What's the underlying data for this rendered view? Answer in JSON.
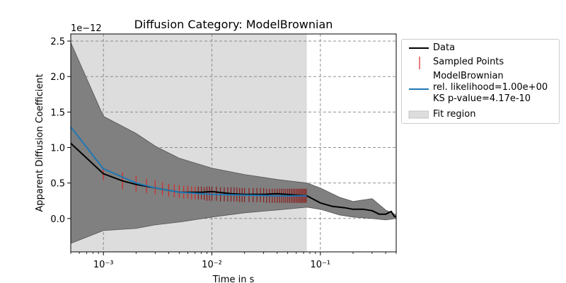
{
  "chart_data": {
    "type": "line",
    "title": "Diffusion Category: ModelBrownian",
    "xlabel": "Time in s",
    "ylabel": "Apparent Diffusion Coefficient",
    "y_offset_label": "1e−12",
    "x_scale": "log",
    "xlim": [
      0.0005,
      0.5
    ],
    "ylim": [
      -0.47,
      2.6
    ],
    "x_ticks": [
      0.001,
      0.01,
      0.1
    ],
    "x_tick_labels": [
      "10⁻³",
      "10⁻²",
      "10⁻¹"
    ],
    "y_ticks": [
      0.0,
      0.5,
      1.0,
      1.5,
      2.0,
      2.5
    ],
    "y_tick_labels": [
      "0.0",
      "0.5",
      "1.0",
      "1.5",
      "2.0",
      "2.5"
    ],
    "grid": true,
    "legend_position": "outside-right",
    "fit_region": [
      0.0005,
      0.075
    ],
    "series": [
      {
        "name": "Data",
        "color": "#000000",
        "x": [
          0.0005,
          0.001,
          0.0015,
          0.002,
          0.003,
          0.005,
          0.008,
          0.01,
          0.015,
          0.02,
          0.03,
          0.04,
          0.06,
          0.075,
          0.1,
          0.13,
          0.17,
          0.2,
          0.25,
          0.3,
          0.35,
          0.4,
          0.45,
          0.48,
          0.5
        ],
        "y": [
          1.06,
          0.63,
          0.53,
          0.48,
          0.43,
          0.37,
          0.37,
          0.38,
          0.35,
          0.34,
          0.34,
          0.35,
          0.33,
          0.32,
          0.22,
          0.17,
          0.15,
          0.13,
          0.13,
          0.11,
          0.06,
          0.06,
          0.1,
          0.03,
          0.02
        ]
      },
      {
        "name": "ModelBrownian\nrel. likelihood=1.00e+00\nKS p-value=4.17e-10",
        "color": "#1f77b4",
        "x": [
          0.0005,
          0.001,
          0.002,
          0.003,
          0.005,
          0.008,
          0.01,
          0.02,
          0.04,
          0.075
        ],
        "y": [
          1.29,
          0.7,
          0.5,
          0.43,
          0.37,
          0.35,
          0.34,
          0.33,
          0.32,
          0.32
        ]
      }
    ],
    "band": {
      "color": "#808080",
      "x": [
        0.0005,
        0.001,
        0.002,
        0.003,
        0.005,
        0.01,
        0.02,
        0.04,
        0.075,
        0.1,
        0.15,
        0.2,
        0.3,
        0.4,
        0.5
      ],
      "upper": [
        2.48,
        1.44,
        1.2,
        1.02,
        0.85,
        0.71,
        0.62,
        0.55,
        0.5,
        0.43,
        0.3,
        0.24,
        0.28,
        0.12,
        0.05
      ],
      "lower": [
        -0.35,
        -0.17,
        -0.14,
        -0.09,
        -0.05,
        0.02,
        0.08,
        0.12,
        0.16,
        0.13,
        0.05,
        0.02,
        0.0,
        -0.02,
        0.0
      ]
    },
    "sampled_points": {
      "name": "Sampled Points",
      "color": "#d62728",
      "x": [
        0.001,
        0.0015,
        0.002,
        0.0025,
        0.003,
        0.0035,
        0.004,
        0.0045,
        0.005,
        0.0055,
        0.006,
        0.0065,
        0.007,
        0.0075,
        0.008,
        0.0085,
        0.009,
        0.0095,
        0.01,
        0.011,
        0.012,
        0.013,
        0.014,
        0.015,
        0.016,
        0.017,
        0.018,
        0.019,
        0.02,
        0.022,
        0.024,
        0.026,
        0.028,
        0.03,
        0.032,
        0.034,
        0.036,
        0.038,
        0.04,
        0.042,
        0.044,
        0.046,
        0.048,
        0.05,
        0.052,
        0.054,
        0.056,
        0.058,
        0.06,
        0.062,
        0.064,
        0.066,
        0.068,
        0.07,
        0.072,
        0.074
      ],
      "y": [
        0.62,
        0.53,
        0.49,
        0.46,
        0.44,
        0.42,
        0.4,
        0.39,
        0.38,
        0.37,
        0.37,
        0.36,
        0.36,
        0.36,
        0.36,
        0.35,
        0.35,
        0.35,
        0.35,
        0.35,
        0.34,
        0.34,
        0.34,
        0.34,
        0.34,
        0.34,
        0.33,
        0.33,
        0.33,
        0.33,
        0.33,
        0.33,
        0.33,
        0.33,
        0.32,
        0.32,
        0.32,
        0.32,
        0.32,
        0.32,
        0.32,
        0.32,
        0.32,
        0.32,
        0.32,
        0.32,
        0.32,
        0.32,
        0.32,
        0.32,
        0.32,
        0.32,
        0.32,
        0.32,
        0.32,
        0.32
      ],
      "err": [
        0.08,
        0.12,
        0.11,
        0.1,
        0.1,
        0.09,
        0.09,
        0.09,
        0.09,
        0.09,
        0.09,
        0.09,
        0.09,
        0.09,
        0.09,
        0.09,
        0.1,
        0.1,
        0.1,
        0.1,
        0.1,
        0.1,
        0.1,
        0.1,
        0.1,
        0.1,
        0.1,
        0.1,
        0.1,
        0.1,
        0.1,
        0.1,
        0.1,
        0.1,
        0.1,
        0.1,
        0.1,
        0.1,
        0.1,
        0.1,
        0.1,
        0.1,
        0.1,
        0.1,
        0.1,
        0.1,
        0.1,
        0.1,
        0.1,
        0.1,
        0.1,
        0.1,
        0.1,
        0.1,
        0.1,
        0.1
      ]
    },
    "legend": {
      "data": "Data",
      "sampled": "Sampled Points",
      "model": "ModelBrownian\nrel. likelihood=1.00e+00\nKS p-value=4.17e-10",
      "fit_region": "Fit region"
    }
  }
}
